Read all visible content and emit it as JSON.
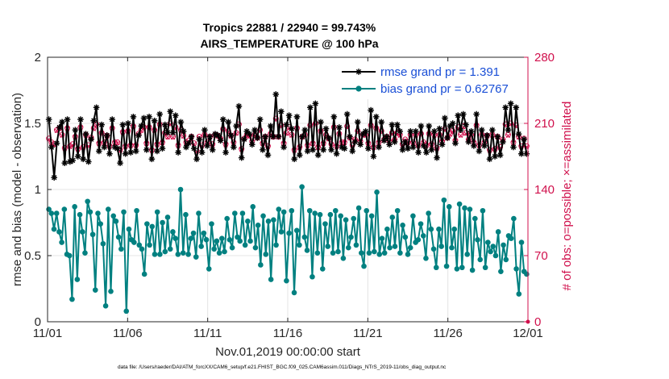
{
  "title_line1": "Tropics 22881 / 22940 = 99.743%",
  "title_line2": "AIRS_TEMPERATURE @ 100 hPa",
  "footer": "data file: /Users/raeder/DAI/ATM_forcXX/CAM6_setup/f.e21.FHIST_BGC.f09_025.CAM6assim.011/Diags_NTrS_2019-11/obs_diag_output.nc",
  "colors": {
    "rmse": "#000000",
    "bias": "#008080",
    "obs": "#d0104c",
    "legend_text": "#1a4fd6",
    "grid": "#e4e4e4"
  },
  "chart_data": {
    "type": "line",
    "xlabel": "Nov.01,2019 00:00:00 start",
    "ylabel_left": "rmse and bias (model - observation)",
    "ylabel_right": "# of obs: o=possible; ×=assimilated",
    "x_tick_labels": [
      "11/01",
      "11/06",
      "11/11",
      "11/16",
      "11/21",
      "11/26",
      "12/01"
    ],
    "x_range_days": [
      0,
      30
    ],
    "y_left_ticks": [
      "0",
      "0.5",
      "1",
      "1.5",
      "2"
    ],
    "y_left_range": [
      0,
      2
    ],
    "y_right_ticks": [
      "0",
      "70",
      "140",
      "210",
      "280"
    ],
    "y_right_range": [
      0,
      280
    ],
    "grid": true,
    "legend_position": "top-right",
    "series": [
      {
        "name": "rmse grand pr = 1.391",
        "axis": "left",
        "marker": "asterisk",
        "values": [
          1.53,
          1.32,
          1.09,
          1.35,
          1.47,
          1.51,
          1.2,
          1.53,
          1.21,
          1.22,
          1.45,
          1.25,
          1.53,
          1.23,
          1.42,
          1.21,
          1.38,
          1.52,
          1.62,
          1.29,
          1.49,
          1.32,
          1.41,
          1.27,
          1.53,
          1.32,
          1.31,
          1.2,
          1.49,
          1.27,
          1.5,
          1.28,
          1.55,
          1.29,
          1.41,
          1.48,
          1.54,
          1.3,
          1.55,
          1.23,
          1.52,
          1.29,
          1.57,
          1.31,
          1.49,
          1.43,
          1.59,
          1.43,
          1.56,
          1.28,
          1.51,
          1.44,
          1.32,
          1.35,
          1.4,
          1.31,
          1.23,
          1.38,
          1.28,
          1.45,
          1.33,
          1.4,
          1.3,
          1.42,
          1.41,
          1.37,
          1.53,
          1.28,
          1.51,
          1.41,
          1.32,
          1.48,
          1.63,
          1.24,
          1.38,
          1.44,
          1.42,
          1.34,
          1.45,
          1.39,
          1.53,
          1.3,
          1.4,
          1.26,
          1.48,
          1.4,
          1.72,
          1.4,
          1.59,
          1.32,
          1.49,
          1.56,
          1.46,
          1.23,
          1.55,
          1.26,
          1.4,
          1.45,
          1.29,
          1.62,
          1.3,
          1.65,
          1.26,
          1.51,
          1.3,
          1.46,
          1.39,
          1.3,
          1.55,
          1.27,
          1.47,
          1.32,
          1.31,
          1.57,
          1.4,
          1.29,
          1.36,
          1.51,
          1.34,
          1.42,
          1.44,
          1.31,
          1.6,
          1.25,
          1.55,
          1.32,
          1.51,
          1.37,
          1.4,
          1.34,
          1.49,
          1.36,
          1.49,
          1.44,
          1.3,
          1.36,
          1.31,
          1.44,
          1.32,
          1.44,
          1.28,
          1.48,
          1.33,
          1.28,
          1.48,
          1.3,
          1.44,
          1.24,
          1.46,
          1.34,
          1.54,
          1.39,
          1.48,
          1.5,
          1.35,
          1.56,
          1.45,
          1.57,
          1.49,
          1.36,
          1.44,
          1.33,
          1.57,
          1.29,
          1.45,
          1.33,
          1.41,
          1.23,
          1.45,
          1.25,
          1.4,
          1.26,
          1.36,
          1.62,
          1.45,
          1.65,
          1.32,
          1.62,
          1.42,
          1.27,
          1.38,
          1.27
        ]
      },
      {
        "name": "bias grand pr = 0.62767",
        "axis": "left",
        "marker": "circle",
        "values": [
          0.85,
          0.82,
          0.7,
          0.82,
          0.68,
          0.6,
          0.85,
          0.51,
          0.5,
          0.17,
          0.87,
          0.32,
          0.81,
          0.68,
          0.52,
          0.91,
          0.83,
          0.66,
          0.24,
          0.82,
          0.74,
          0.59,
          0.12,
          0.85,
          0.23,
          0.8,
          0.76,
          0.64,
          0.55,
          0.83,
          0.08,
          0.7,
          0.62,
          0.6,
          0.84,
          0.58,
          0.55,
          0.36,
          0.74,
          0.58,
          0.72,
          0.51,
          0.83,
          0.51,
          0.75,
          0.53,
          0.79,
          0.55,
          0.68,
          0.63,
          0.51,
          1.0,
          0.52,
          0.81,
          0.51,
          0.63,
          0.67,
          0.49,
          0.82,
          0.57,
          0.67,
          0.62,
          0.4,
          0.74,
          0.55,
          0.61,
          0.52,
          0.63,
          0.53,
          0.78,
          0.62,
          0.56,
          0.82,
          0.64,
          0.61,
          0.82,
          0.58,
          0.76,
          0.61,
          0.87,
          0.56,
          0.73,
          0.43,
          0.8,
          0.51,
          0.76,
          0.32,
          0.77,
          0.58,
          0.85,
          0.68,
          0.83,
          0.31,
          0.67,
          0.84,
          0.22,
          0.69,
          0.58,
          1.02,
          0.64,
          0.54,
          0.84,
          0.34,
          0.82,
          0.52,
          0.81,
          0.4,
          0.74,
          0.57,
          0.81,
          0.52,
          0.84,
          0.53,
          0.8,
          0.48,
          0.77,
          0.56,
          0.64,
          0.78,
          0.58,
          0.86,
          0.52,
          0.42,
          0.84,
          0.52,
          0.8,
          0.53,
          0.98,
          0.51,
          0.63,
          0.52,
          0.7,
          0.56,
          0.79,
          0.57,
          0.84,
          0.52,
          0.73,
          0.64,
          0.51,
          0.56,
          0.8,
          0.6,
          0.62,
          0.74,
          0.65,
          0.48,
          0.82,
          0.7,
          0.55,
          0.41,
          0.7,
          0.57,
          0.92,
          0.42,
          0.87,
          0.56,
          0.7,
          0.4,
          0.89,
          0.41,
          0.86,
          0.51,
          0.85,
          0.39,
          0.78,
          0.62,
          0.47,
          0.84,
          0.41,
          0.6,
          0.53,
          0.57,
          0.5,
          0.68,
          0.38,
          0.58,
          0.47,
          0.65,
          0.63,
          0.78,
          0.4,
          0.21,
          0.6,
          0.38,
          0.36
        ]
      },
      {
        "name": "# of obs possible",
        "axis": "right",
        "marker": "o",
        "values": [
          194,
          190,
          188,
          203,
          205,
          198,
          184,
          205,
          186,
          188,
          196,
          183,
          206,
          185,
          198,
          187,
          195,
          205,
          209,
          189,
          200,
          190,
          197,
          186,
          205,
          190,
          190,
          182,
          201,
          186,
          202,
          187,
          207,
          187,
          199,
          203,
          206,
          189,
          206,
          182,
          203,
          188,
          209,
          190,
          200,
          196,
          210,
          196,
          206,
          187,
          203,
          197,
          190,
          192,
          196,
          189,
          181,
          196,
          187,
          198,
          190,
          196,
          188,
          198,
          197,
          194,
          204,
          188,
          202,
          197,
          190,
          200,
          209,
          183,
          194,
          198,
          197,
          191,
          198,
          195,
          203,
          189,
          196,
          186,
          199,
          196,
          215,
          196,
          208,
          189,
          200,
          206,
          198,
          182,
          205,
          185,
          196,
          198,
          187,
          208,
          189,
          210,
          185,
          202,
          189,
          198,
          194,
          188,
          206,
          186,
          199,
          190,
          190,
          207,
          195,
          187,
          193,
          202,
          191,
          198,
          198,
          189,
          208,
          185,
          205,
          190,
          202,
          193,
          196,
          191,
          200,
          193,
          200,
          198,
          188,
          193,
          190,
          198,
          190,
          198,
          187,
          199,
          190,
          187,
          199,
          188,
          198,
          184,
          198,
          191,
          204,
          195,
          199,
          202,
          192,
          206,
          198,
          207,
          200,
          193,
          198,
          190,
          208,
          187,
          198,
          190,
          197,
          182,
          198,
          183,
          196,
          185,
          193,
          209,
          198,
          210,
          190,
          208,
          196,
          186,
          194,
          186
        ]
      },
      {
        "name": "# of obs assimilated",
        "axis": "right",
        "marker": "x",
        "values": [
          193,
          189,
          187,
          202,
          204,
          197,
          183,
          204,
          185,
          187,
          195,
          182,
          205,
          184,
          197,
          186,
          194,
          204,
          208,
          188,
          199,
          189,
          196,
          185,
          204,
          189,
          189,
          181,
          200,
          185,
          201,
          186,
          206,
          186,
          198,
          202,
          205,
          188,
          205,
          181,
          202,
          187,
          208,
          189,
          199,
          195,
          209,
          195,
          205,
          186,
          202,
          196,
          189,
          191,
          195,
          188,
          180,
          195,
          186,
          197,
          189,
          195,
          187,
          197,
          196,
          193,
          203,
          187,
          201,
          196,
          189,
          199,
          208,
          182,
          193,
          197,
          196,
          190,
          197,
          194,
          202,
          188,
          195,
          185,
          198,
          195,
          214,
          195,
          207,
          188,
          199,
          205,
          197,
          181,
          204,
          184,
          195,
          197,
          186,
          207,
          188,
          209,
          184,
          201,
          188,
          197,
          193,
          187,
          205,
          185,
          198,
          189,
          189,
          206,
          194,
          186,
          192,
          201,
          190,
          197,
          197,
          188,
          207,
          184,
          204,
          189,
          201,
          192,
          195,
          190,
          199,
          192,
          199,
          197,
          187,
          192,
          189,
          197,
          189,
          197,
          186,
          198,
          189,
          186,
          198,
          187,
          197,
          183,
          197,
          190,
          203,
          194,
          198,
          201,
          191,
          205,
          197,
          206,
          199,
          192,
          197,
          189,
          207,
          186,
          197,
          189,
          196,
          181,
          197,
          182,
          195,
          184,
          192,
          208,
          197,
          209,
          189,
          207,
          195,
          185,
          193,
          185
        ]
      }
    ]
  }
}
